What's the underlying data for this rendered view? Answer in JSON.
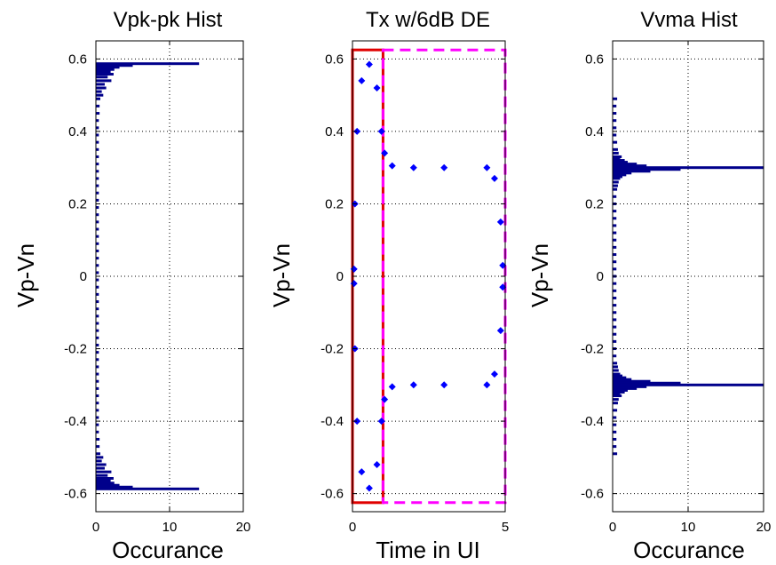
{
  "chart_data": [
    {
      "type": "bar",
      "orientation": "horizontal",
      "title": "Vpk-pk Hist",
      "xlabel": "Occurance",
      "ylabel": "Vp-Vn",
      "xlim": [
        0,
        20
      ],
      "ylim": [
        -0.65,
        0.65
      ],
      "xticks": [
        "0",
        "10",
        "20"
      ],
      "yticks": [
        "-0.6",
        "-0.4",
        "-0.2",
        "0",
        "0.2",
        "0.4",
        "0.6"
      ],
      "grid": true,
      "bar_color": "#00008b",
      "bars": [
        {
          "y": 0.587,
          "count": 14
        },
        {
          "y": 0.582,
          "count": 5
        },
        {
          "y": 0.577,
          "count": 3.2
        },
        {
          "y": 0.571,
          "count": 2.5
        },
        {
          "y": 0.565,
          "count": 2
        },
        {
          "y": 0.558,
          "count": 2.4
        },
        {
          "y": 0.55,
          "count": 1.6
        },
        {
          "y": 0.54,
          "count": 2.1
        },
        {
          "y": 0.53,
          "count": 1.2
        },
        {
          "y": 0.52,
          "count": 1.4
        },
        {
          "y": 0.51,
          "count": 0.8
        },
        {
          "y": 0.5,
          "count": 1
        },
        {
          "y": 0.49,
          "count": 0.6
        },
        {
          "y": 0.47,
          "count": 0.5
        },
        {
          "y": 0.45,
          "count": 0.5
        },
        {
          "y": 0.43,
          "count": 0.4
        },
        {
          "y": 0.41,
          "count": 0.4
        },
        {
          "y": 0.39,
          "count": 0.4
        },
        {
          "y": 0.37,
          "count": 0.4
        },
        {
          "y": 0.35,
          "count": 0.4
        },
        {
          "y": 0.33,
          "count": 0.4
        },
        {
          "y": 0.31,
          "count": 0.4
        },
        {
          "y": 0.29,
          "count": 0.4
        },
        {
          "y": 0.27,
          "count": 0.4
        },
        {
          "y": 0.25,
          "count": 0.4
        },
        {
          "y": 0.23,
          "count": 0.4
        },
        {
          "y": 0.21,
          "count": 0.4
        },
        {
          "y": 0.19,
          "count": 0.4
        },
        {
          "y": 0.17,
          "count": 0.4
        },
        {
          "y": 0.15,
          "count": 0.4
        },
        {
          "y": 0.13,
          "count": 0.4
        },
        {
          "y": 0.11,
          "count": 0.4
        },
        {
          "y": 0.09,
          "count": 0.4
        },
        {
          "y": 0.07,
          "count": 0.4
        },
        {
          "y": 0.05,
          "count": 0.4
        },
        {
          "y": 0.03,
          "count": 0.4
        },
        {
          "y": 0.01,
          "count": 0.4
        },
        {
          "y": -0.01,
          "count": 0.4
        },
        {
          "y": -0.03,
          "count": 0.4
        },
        {
          "y": -0.05,
          "count": 0.4
        },
        {
          "y": -0.07,
          "count": 0.4
        },
        {
          "y": -0.09,
          "count": 0.4
        },
        {
          "y": -0.11,
          "count": 0.4
        },
        {
          "y": -0.13,
          "count": 0.4
        },
        {
          "y": -0.15,
          "count": 0.4
        },
        {
          "y": -0.17,
          "count": 0.4
        },
        {
          "y": -0.19,
          "count": 0.4
        },
        {
          "y": -0.21,
          "count": 0.4
        },
        {
          "y": -0.23,
          "count": 0.4
        },
        {
          "y": -0.25,
          "count": 0.4
        },
        {
          "y": -0.27,
          "count": 0.4
        },
        {
          "y": -0.29,
          "count": 0.4
        },
        {
          "y": -0.31,
          "count": 0.4
        },
        {
          "y": -0.33,
          "count": 0.4
        },
        {
          "y": -0.35,
          "count": 0.4
        },
        {
          "y": -0.37,
          "count": 0.4
        },
        {
          "y": -0.39,
          "count": 0.4
        },
        {
          "y": -0.41,
          "count": 0.4
        },
        {
          "y": -0.43,
          "count": 0.4
        },
        {
          "y": -0.45,
          "count": 0.5
        },
        {
          "y": -0.47,
          "count": 0.5
        },
        {
          "y": -0.49,
          "count": 0.6
        },
        {
          "y": -0.5,
          "count": 1
        },
        {
          "y": -0.51,
          "count": 0.8
        },
        {
          "y": -0.52,
          "count": 1.4
        },
        {
          "y": -0.53,
          "count": 1.2
        },
        {
          "y": -0.54,
          "count": 2.1
        },
        {
          "y": -0.55,
          "count": 1.6
        },
        {
          "y": -0.558,
          "count": 2.4
        },
        {
          "y": -0.565,
          "count": 2
        },
        {
          "y": -0.571,
          "count": 2.5
        },
        {
          "y": -0.577,
          "count": 3.2
        },
        {
          "y": -0.582,
          "count": 5
        },
        {
          "y": -0.587,
          "count": 14
        }
      ]
    },
    {
      "type": "scatter",
      "title": "Tx w/6dB DE",
      "xlabel": "Time in UI",
      "ylabel": "Vp-Vn",
      "xlim": [
        0,
        5
      ],
      "ylim": [
        -0.65,
        0.65
      ],
      "xticks": [
        "0",
        "5"
      ],
      "yticks": [
        "-0.6",
        "-0.4",
        "-0.2",
        "0",
        "0.2",
        "0.4",
        "0.6"
      ],
      "grid": true,
      "marker_color": "#0000ff",
      "series": [
        {
          "values": [
            {
              "x": 0.05,
              "y": 0.02
            },
            {
              "x": 0.05,
              "y": -0.02
            },
            {
              "x": 0.08,
              "y": 0.2
            },
            {
              "x": 0.08,
              "y": -0.2
            },
            {
              "x": 0.15,
              "y": 0.4
            },
            {
              "x": 0.15,
              "y": -0.4
            },
            {
              "x": 0.3,
              "y": 0.54
            },
            {
              "x": 0.3,
              "y": -0.54
            },
            {
              "x": 0.55,
              "y": 0.585
            },
            {
              "x": 0.55,
              "y": -0.585
            },
            {
              "x": 0.8,
              "y": 0.52
            },
            {
              "x": 0.8,
              "y": -0.52
            },
            {
              "x": 0.95,
              "y": 0.4
            },
            {
              "x": 0.95,
              "y": -0.4
            },
            {
              "x": 1.05,
              "y": 0.34
            },
            {
              "x": 1.05,
              "y": -0.34
            },
            {
              "x": 1.3,
              "y": 0.305
            },
            {
              "x": 1.3,
              "y": -0.305
            },
            {
              "x": 2,
              "y": 0.3
            },
            {
              "x": 2,
              "y": -0.3
            },
            {
              "x": 3,
              "y": 0.3
            },
            {
              "x": 3,
              "y": -0.3
            },
            {
              "x": 4.4,
              "y": 0.3
            },
            {
              "x": 4.4,
              "y": -0.3
            },
            {
              "x": 4.65,
              "y": 0.27
            },
            {
              "x": 4.65,
              "y": -0.27
            },
            {
              "x": 4.85,
              "y": 0.15
            },
            {
              "x": 4.85,
              "y": -0.15
            },
            {
              "x": 4.92,
              "y": 0.03
            },
            {
              "x": 4.92,
              "y": -0.03
            }
          ]
        }
      ],
      "overlays": [
        {
          "kind": "rectangle",
          "style": "solid",
          "color": "#e00000",
          "x": [
            0,
            1
          ],
          "y": [
            -0.625,
            0.625
          ]
        },
        {
          "kind": "rectangle",
          "style": "dashed",
          "color": "#ff00ff",
          "x": [
            1,
            5
          ],
          "y": [
            -0.625,
            0.625
          ]
        }
      ]
    },
    {
      "type": "bar",
      "orientation": "horizontal",
      "title": "Vvma Hist",
      "xlabel": "Occurance",
      "ylabel": "Vp-Vn",
      "xlim": [
        0,
        20
      ],
      "ylim": [
        -0.65,
        0.65
      ],
      "xticks": [
        "0",
        "10",
        "20"
      ],
      "yticks": [
        "-0.6",
        "-0.4",
        "-0.2",
        "0",
        "0.2",
        "0.4",
        "0.6"
      ],
      "grid": true,
      "bar_color": "#00008b",
      "bars": [
        {
          "y": 0.49,
          "count": 0.6
        },
        {
          "y": 0.47,
          "count": 0.5
        },
        {
          "y": 0.45,
          "count": 0.5
        },
        {
          "y": 0.43,
          "count": 0.5
        },
        {
          "y": 0.41,
          "count": 0.5
        },
        {
          "y": 0.39,
          "count": 0.5
        },
        {
          "y": 0.37,
          "count": 0.6
        },
        {
          "y": 0.35,
          "count": 0.7
        },
        {
          "y": 0.34,
          "count": 0.8
        },
        {
          "y": 0.33,
          "count": 1.2
        },
        {
          "y": 0.325,
          "count": 1
        },
        {
          "y": 0.32,
          "count": 1.6
        },
        {
          "y": 0.315,
          "count": 2
        },
        {
          "y": 0.31,
          "count": 3.2
        },
        {
          "y": 0.305,
          "count": 4.5
        },
        {
          "y": 0.3,
          "count": 20
        },
        {
          "y": 0.295,
          "count": 9
        },
        {
          "y": 0.29,
          "count": 5
        },
        {
          "y": 0.285,
          "count": 2.5
        },
        {
          "y": 0.28,
          "count": 1.8
        },
        {
          "y": 0.275,
          "count": 1.3
        },
        {
          "y": 0.27,
          "count": 1
        },
        {
          "y": 0.26,
          "count": 0.8
        },
        {
          "y": 0.25,
          "count": 0.7
        },
        {
          "y": 0.24,
          "count": 0.6
        },
        {
          "y": 0.22,
          "count": 0.5
        },
        {
          "y": 0.2,
          "count": 0.5
        },
        {
          "y": 0.18,
          "count": 0.5
        },
        {
          "y": 0.16,
          "count": 0.5
        },
        {
          "y": 0.14,
          "count": 0.5
        },
        {
          "y": 0.12,
          "count": 0.5
        },
        {
          "y": 0.1,
          "count": 0.5
        },
        {
          "y": 0.08,
          "count": 0.5
        },
        {
          "y": 0.06,
          "count": 0.5
        },
        {
          "y": 0.04,
          "count": 0.5
        },
        {
          "y": 0.02,
          "count": 0.5
        },
        {
          "y": 0,
          "count": 0.5
        },
        {
          "y": -0.02,
          "count": 0.5
        },
        {
          "y": -0.04,
          "count": 0.5
        },
        {
          "y": -0.06,
          "count": 0.5
        },
        {
          "y": -0.08,
          "count": 0.5
        },
        {
          "y": -0.1,
          "count": 0.5
        },
        {
          "y": -0.12,
          "count": 0.5
        },
        {
          "y": -0.14,
          "count": 0.5
        },
        {
          "y": -0.16,
          "count": 0.5
        },
        {
          "y": -0.18,
          "count": 0.5
        },
        {
          "y": -0.2,
          "count": 0.5
        },
        {
          "y": -0.22,
          "count": 0.5
        },
        {
          "y": -0.24,
          "count": 0.6
        },
        {
          "y": -0.25,
          "count": 0.7
        },
        {
          "y": -0.26,
          "count": 0.8
        },
        {
          "y": -0.27,
          "count": 1
        },
        {
          "y": -0.275,
          "count": 1.3
        },
        {
          "y": -0.28,
          "count": 1.8
        },
        {
          "y": -0.285,
          "count": 2.5
        },
        {
          "y": -0.29,
          "count": 5
        },
        {
          "y": -0.295,
          "count": 9
        },
        {
          "y": -0.3,
          "count": 20
        },
        {
          "y": -0.305,
          "count": 4.5
        },
        {
          "y": -0.31,
          "count": 3.2
        },
        {
          "y": -0.315,
          "count": 2
        },
        {
          "y": -0.32,
          "count": 1.6
        },
        {
          "y": -0.325,
          "count": 1
        },
        {
          "y": -0.33,
          "count": 1.2
        },
        {
          "y": -0.34,
          "count": 0.8
        },
        {
          "y": -0.35,
          "count": 0.7
        },
        {
          "y": -0.37,
          "count": 0.6
        },
        {
          "y": -0.39,
          "count": 0.5
        },
        {
          "y": -0.41,
          "count": 0.5
        },
        {
          "y": -0.43,
          "count": 0.5
        },
        {
          "y": -0.45,
          "count": 0.5
        },
        {
          "y": -0.47,
          "count": 0.5
        },
        {
          "y": -0.49,
          "count": 0.6
        }
      ]
    }
  ]
}
